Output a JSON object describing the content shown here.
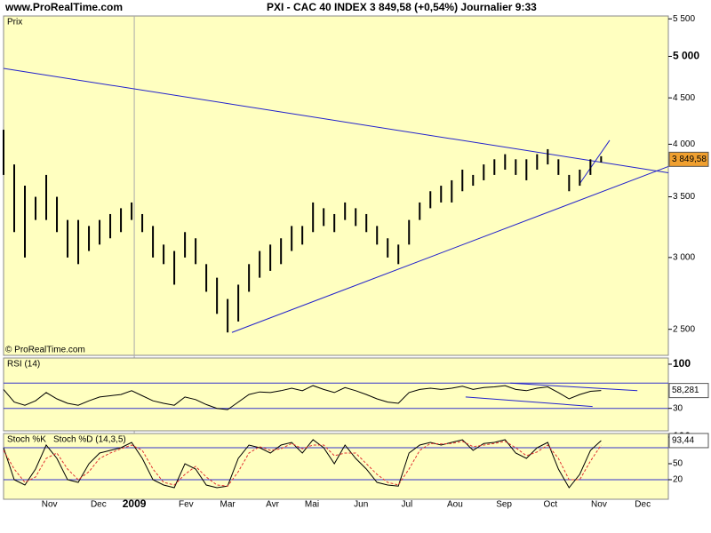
{
  "header": {
    "site": "www.ProRealTime.com",
    "title": "PXI - CAC 40 INDEX   3 849,58 (+0,54%)   Journalier  9:33"
  },
  "chart_data": [
    {
      "type": "ohlc",
      "title": "Prix",
      "credit": "© ProRealTime.com",
      "log_scale": true,
      "color": "#000000",
      "last_label": "3 849,58",
      "last_value": 3849.58,
      "x": [
        0,
        1,
        2,
        3,
        4,
        5,
        6,
        7,
        8,
        9,
        10,
        11,
        12,
        13,
        14,
        15,
        16,
        17,
        18,
        19,
        20,
        21,
        22,
        23,
        24,
        25,
        26,
        27,
        28,
        29,
        30,
        31,
        32,
        33,
        34,
        35,
        36,
        37,
        38,
        39,
        40,
        41,
        42,
        43,
        44,
        45,
        46,
        47,
        48,
        49,
        50,
        51,
        52,
        53,
        54,
        55,
        56
      ],
      "high": [
        4150,
        3800,
        3600,
        3500,
        3700,
        3500,
        3300,
        3300,
        3250,
        3300,
        3350,
        3400,
        3450,
        3350,
        3250,
        3100,
        3050,
        3200,
        3150,
        2950,
        2850,
        2700,
        2800,
        2950,
        3050,
        3100,
        3150,
        3250,
        3250,
        3450,
        3400,
        3350,
        3450,
        3400,
        3350,
        3250,
        3150,
        3100,
        3300,
        3450,
        3550,
        3600,
        3650,
        3750,
        3700,
        3800,
        3850,
        3900,
        3850,
        3850,
        3900,
        3950,
        3850,
        3700,
        3750,
        3850,
        3880
      ],
      "low": [
        3700,
        3200,
        3000,
        3300,
        3300,
        3200,
        3000,
        2950,
        3050,
        3100,
        3150,
        3200,
        3300,
        3200,
        3000,
        2950,
        2800,
        3000,
        2950,
        2750,
        2600,
        2480,
        2550,
        2750,
        2850,
        2900,
        2950,
        3050,
        3100,
        3200,
        3250,
        3200,
        3300,
        3250,
        3200,
        3100,
        3000,
        2950,
        3100,
        3300,
        3400,
        3450,
        3450,
        3550,
        3600,
        3650,
        3700,
        3750,
        3700,
        3650,
        3750,
        3800,
        3700,
        3550,
        3600,
        3700,
        3820
      ],
      "trendlines": [
        {
          "x": [
            0,
            62.3
          ],
          "y": [
            4850,
            3720
          ]
        },
        {
          "x": [
            21.4,
            62.3
          ],
          "y": [
            2480,
            3780
          ]
        },
        {
          "x": [
            54,
            56.8
          ],
          "y": [
            3620,
            4040
          ]
        }
      ],
      "xlim": [
        0,
        62.3
      ],
      "ylim": [
        2340,
        5540
      ],
      "yticks": [
        {
          "value": 2500,
          "label": "2 500"
        },
        {
          "value": 3000,
          "label": "3 000"
        },
        {
          "value": 3500,
          "label": "3 500"
        },
        {
          "value": 4000,
          "label": "4 000"
        },
        {
          "value": 4500,
          "label": "4 500"
        },
        {
          "value": 5000,
          "label": "5 000"
        },
        {
          "value": 5500,
          "label": "5 500"
        }
      ],
      "xticks": [
        {
          "value": 4.3,
          "label": "Nov"
        },
        {
          "value": 8.9,
          "label": "Dec"
        },
        {
          "value": 12.25,
          "label": "2009"
        },
        {
          "value": 17.1,
          "label": "Fev"
        },
        {
          "value": 21,
          "label": "Mar"
        },
        {
          "value": 25.2,
          "label": "Avr"
        },
        {
          "value": 28.9,
          "label": "Mai"
        },
        {
          "value": 33.5,
          "label": "Jun"
        },
        {
          "value": 37.8,
          "label": "Jul"
        },
        {
          "value": 42.3,
          "label": "Aou"
        },
        {
          "value": 46.9,
          "label": "Sep"
        },
        {
          "value": 51.25,
          "label": "Oct"
        },
        {
          "value": 55.8,
          "label": "Nov"
        },
        {
          "value": 59.9,
          "label": "Dec"
        }
      ]
    },
    {
      "type": "line",
      "title": "RSI (14)",
      "last_label": "58,281",
      "last_value": 58.281,
      "x": [
        0,
        1,
        2,
        3,
        4,
        5,
        6,
        7,
        8,
        9,
        10,
        11,
        12,
        13,
        14,
        15,
        16,
        17,
        18,
        19,
        20,
        21,
        22,
        23,
        24,
        25,
        26,
        27,
        28,
        29,
        30,
        31,
        32,
        33,
        34,
        35,
        36,
        37,
        38,
        39,
        40,
        41,
        42,
        43,
        44,
        45,
        46,
        47,
        48,
        49,
        50,
        51,
        52,
        53,
        54,
        55,
        56
      ],
      "series": [
        {
          "name": "RSI (14)",
          "color": "#000000",
          "values": [
            60,
            40,
            35,
            42,
            55,
            45,
            38,
            35,
            42,
            48,
            50,
            52,
            58,
            50,
            42,
            38,
            35,
            48,
            44,
            36,
            30,
            28,
            40,
            52,
            56,
            55,
            58,
            62,
            58,
            66,
            60,
            55,
            63,
            58,
            52,
            45,
            40,
            38,
            55,
            60,
            62,
            60,
            62,
            65,
            60,
            63,
            64,
            66,
            60,
            58,
            62,
            64,
            55,
            45,
            52,
            57,
            58.3
          ]
        }
      ],
      "trendlines": [
        {
          "x": [
            47.5,
            59.4
          ],
          "y": [
            70,
            58
          ]
        },
        {
          "x": [
            43.3,
            55.2
          ],
          "y": [
            48,
            33
          ]
        }
      ],
      "levels": [
        70,
        30
      ],
      "xlim": [
        0,
        62.3
      ],
      "ylim": [
        -5.6,
        109.8
      ],
      "yticks": [
        30,
        100
      ]
    },
    {
      "type": "line",
      "title": "Stoch %K",
      "last_label": "93,44",
      "last_value": 93.44,
      "x": [
        0,
        1,
        2,
        3,
        4,
        5,
        6,
        7,
        8,
        9,
        10,
        11,
        12,
        13,
        14,
        15,
        16,
        17,
        18,
        19,
        20,
        21,
        22,
        23,
        24,
        25,
        26,
        27,
        28,
        29,
        30,
        31,
        32,
        33,
        34,
        35,
        36,
        37,
        38,
        39,
        40,
        41,
        42,
        43,
        44,
        45,
        46,
        47,
        48,
        49,
        50,
        51,
        52,
        53,
        54,
        55,
        56
      ],
      "series": [
        {
          "name": "Stoch %K",
          "color": "#000000",
          "values": [
            80,
            20,
            10,
            40,
            85,
            60,
            20,
            15,
            50,
            70,
            75,
            80,
            90,
            60,
            20,
            10,
            5,
            50,
            40,
            10,
            5,
            8,
            60,
            85,
            80,
            70,
            85,
            90,
            70,
            95,
            80,
            50,
            85,
            60,
            40,
            15,
            10,
            8,
            70,
            85,
            90,
            85,
            90,
            95,
            75,
            88,
            90,
            95,
            70,
            60,
            80,
            90,
            40,
            5,
            30,
            75,
            93.4
          ]
        },
        {
          "name": "Stoch %D (14,3,5)",
          "color": "#e03030",
          "values": [
            75,
            40,
            15,
            25,
            60,
            70,
            40,
            20,
            35,
            60,
            70,
            78,
            85,
            75,
            40,
            15,
            10,
            30,
            45,
            25,
            10,
            8,
            35,
            70,
            82,
            75,
            78,
            88,
            78,
            85,
            85,
            65,
            70,
            70,
            50,
            30,
            15,
            10,
            40,
            75,
            88,
            87,
            88,
            92,
            82,
            85,
            88,
            92,
            80,
            65,
            72,
            85,
            60,
            20,
            20,
            55,
            85
          ]
        }
      ],
      "levels": [
        80,
        20
      ],
      "xlim": [
        0,
        62.3
      ],
      "ylim": [
        -16.7,
        106.7
      ],
      "yticks": [
        20,
        50,
        100
      ]
    }
  ]
}
